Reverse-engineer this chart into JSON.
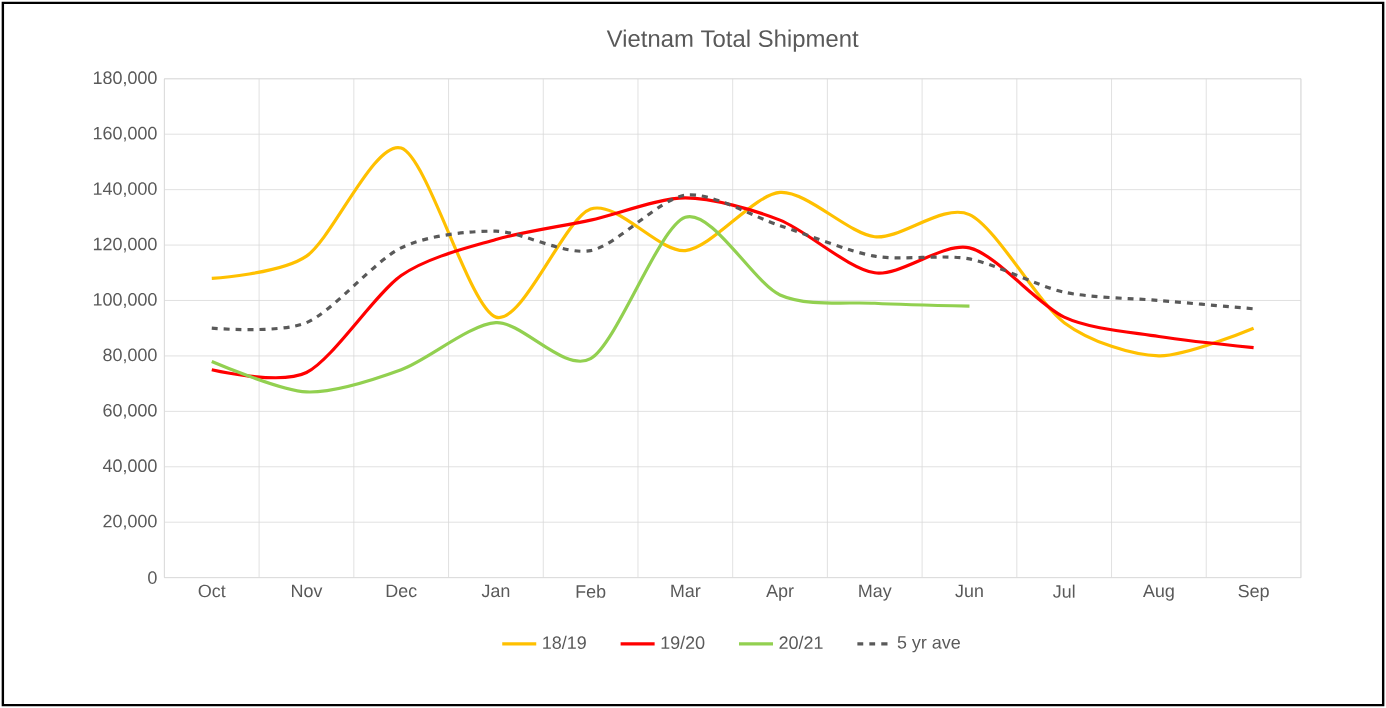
{
  "chart_data": {
    "type": "line",
    "title": "Vietnam Total Shipment",
    "categories": [
      "Oct",
      "Nov",
      "Dec",
      "Jan",
      "Feb",
      "Mar",
      "Apr",
      "May",
      "Jun",
      "Jul",
      "Aug",
      "Sep"
    ],
    "series": [
      {
        "name": "18/19",
        "color": "#ffc000",
        "values": [
          108000,
          116000,
          155000,
          94000,
          133000,
          118000,
          139000,
          123000,
          131000,
          92000,
          80000,
          90000
        ]
      },
      {
        "name": "19/20",
        "color": "#ff0000",
        "values": [
          75000,
          74000,
          109000,
          122000,
          129000,
          137000,
          129000,
          110000,
          119000,
          94000,
          87000,
          83000
        ]
      },
      {
        "name": "20/21",
        "color": "#92d050",
        "values": [
          78000,
          67000,
          75000,
          92000,
          79000,
          130000,
          102000,
          99000,
          98000,
          null,
          null,
          null
        ]
      },
      {
        "name": "5 yr ave",
        "color": "#595959",
        "line_style": "dashed",
        "values": [
          90000,
          92000,
          119000,
          125000,
          118000,
          138000,
          127000,
          116000,
          115000,
          103000,
          100000,
          97000
        ]
      }
    ],
    "ylim": [
      0,
      180000
    ],
    "yticks": [
      {
        "value": 0,
        "label": "0"
      },
      {
        "value": 20000,
        "label": "20,000"
      },
      {
        "value": 40000,
        "label": "40,000"
      },
      {
        "value": 60000,
        "label": "60,000"
      },
      {
        "value": 80000,
        "label": "80,000"
      },
      {
        "value": 100000,
        "label": "100,000"
      },
      {
        "value": 120000,
        "label": "120,000"
      },
      {
        "value": 140000,
        "label": "140,000"
      },
      {
        "value": 160000,
        "label": "160,000"
      },
      {
        "value": 180000,
        "label": "180,000"
      }
    ],
    "grid": true,
    "legend": "bottom",
    "marker": "none",
    "line_style": "solid"
  }
}
